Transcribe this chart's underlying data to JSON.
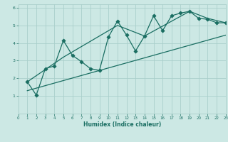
{
  "xlabel": "Humidex (Indice chaleur)",
  "xlim": [
    0,
    23
  ],
  "ylim": [
    0,
    6.2
  ],
  "xticks": [
    0,
    1,
    2,
    3,
    4,
    5,
    6,
    7,
    8,
    9,
    10,
    11,
    12,
    13,
    14,
    15,
    16,
    17,
    18,
    19,
    20,
    21,
    22,
    23
  ],
  "yticks": [
    1,
    2,
    3,
    4,
    5,
    6
  ],
  "bg_color": "#cce8e4",
  "grid_color": "#aacfcb",
  "line_color": "#1a6e62",
  "scatter_x": [
    1,
    2,
    3,
    4,
    5,
    6,
    7,
    8,
    9,
    10,
    11,
    12,
    13,
    14,
    15,
    16,
    17,
    18,
    19,
    20,
    21,
    22,
    23
  ],
  "scatter_y": [
    1.8,
    1.05,
    2.55,
    2.7,
    4.15,
    3.3,
    2.95,
    2.55,
    2.45,
    4.35,
    5.25,
    4.45,
    3.55,
    4.4,
    5.55,
    4.7,
    5.55,
    5.7,
    5.8,
    5.4,
    5.35,
    5.15,
    5.15
  ],
  "line1_x": [
    1,
    23
  ],
  "line1_y": [
    1.3,
    4.45
  ],
  "line2_x": [
    1,
    5,
    11,
    14,
    19,
    21,
    23
  ],
  "line2_y": [
    1.8,
    3.2,
    5.0,
    4.4,
    5.8,
    5.4,
    5.15
  ],
  "font_color": "#1a6e62"
}
